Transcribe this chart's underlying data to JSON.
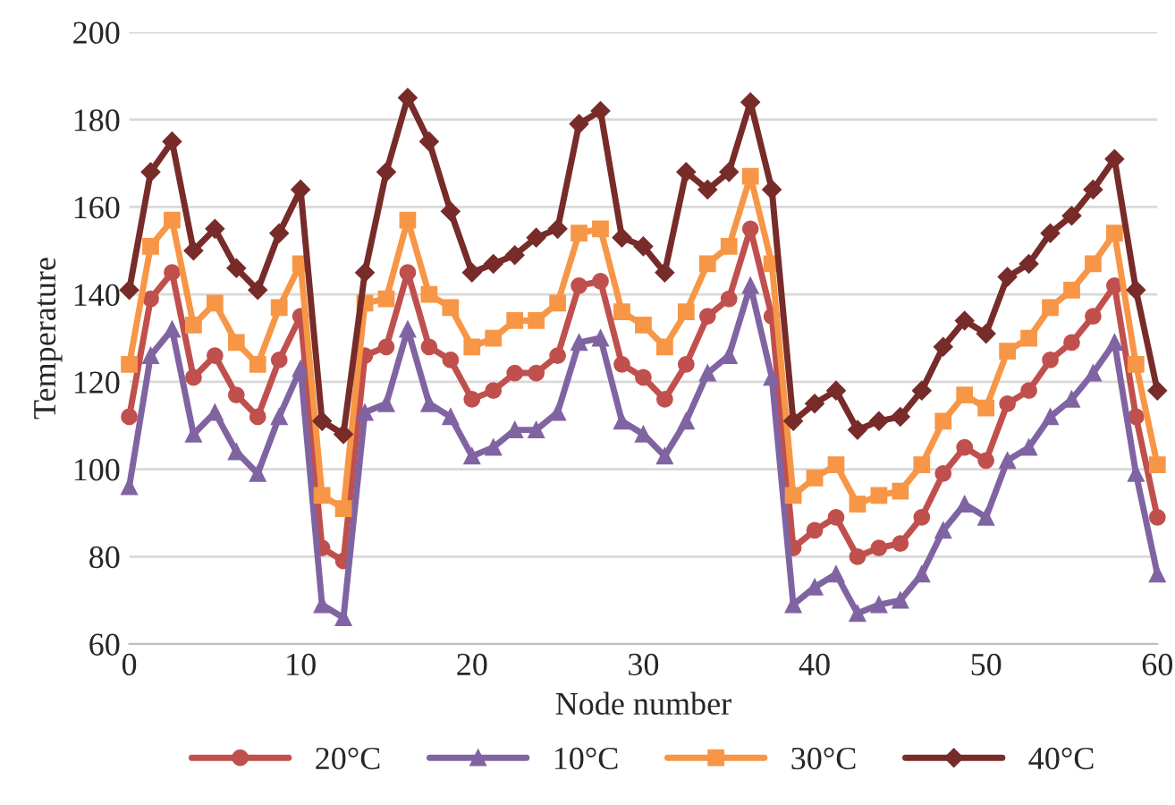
{
  "chart_data": {
    "type": "line",
    "xlabel": "Node number",
    "ylabel": "Temperature",
    "x": [
      0,
      1.25,
      2.5,
      3.75,
      5,
      6.25,
      7.5,
      8.75,
      10,
      11.25,
      12.5,
      13.75,
      15,
      16.25,
      17.5,
      18.75,
      20,
      21.25,
      22.5,
      23.75,
      25,
      26.25,
      27.5,
      28.75,
      30,
      31.25,
      32.5,
      33.75,
      35,
      36.25,
      37.5,
      38.75,
      40,
      41.25,
      42.5,
      43.75,
      45,
      46.25,
      47.5,
      48.75,
      50,
      51.25,
      52.5,
      53.75,
      55,
      56.25,
      57.5,
      58.75,
      60
    ],
    "series": [
      {
        "name": "20°C",
        "color": "#c0504d",
        "marker": "circle",
        "values": [
          112,
          139,
          145,
          121,
          126,
          117,
          112,
          125,
          135,
          82,
          79,
          126,
          128,
          145,
          128,
          125,
          116,
          118,
          122,
          122,
          126,
          142,
          143,
          124,
          121,
          116,
          124,
          135,
          139,
          155,
          135,
          82,
          86,
          89,
          80,
          82,
          83,
          89,
          99,
          105,
          102,
          115,
          118,
          125,
          129,
          135,
          142,
          112,
          89
        ]
      },
      {
        "name": "10°C",
        "color": "#8064a2",
        "marker": "triangle",
        "values": [
          96,
          126,
          132,
          108,
          113,
          104,
          99,
          112,
          123,
          69,
          66,
          113,
          115,
          132,
          115,
          112,
          103,
          105,
          109,
          109,
          113,
          129,
          130,
          111,
          108,
          103,
          111,
          122,
          126,
          142,
          121,
          69,
          73,
          76,
          67,
          69,
          70,
          76,
          86,
          92,
          89,
          102,
          105,
          112,
          116,
          122,
          129,
          99,
          76
        ]
      },
      {
        "name": "30°C",
        "color": "#f79646",
        "marker": "square",
        "values": [
          124,
          151,
          157,
          133,
          138,
          129,
          124,
          137,
          147,
          94,
          91,
          138,
          139,
          157,
          140,
          137,
          128,
          130,
          134,
          134,
          138,
          154,
          155,
          136,
          133,
          128,
          136,
          147,
          151,
          167,
          147,
          94,
          98,
          101,
          92,
          94,
          95,
          101,
          111,
          117,
          114,
          127,
          130,
          137,
          141,
          147,
          154,
          124,
          101
        ]
      },
      {
        "name": "40°C",
        "color": "#772c2a",
        "marker": "diamond",
        "values": [
          141,
          168,
          175,
          150,
          155,
          146,
          141,
          154,
          164,
          111,
          108,
          145,
          168,
          185,
          175,
          159,
          145,
          147,
          149,
          153,
          155,
          179,
          182,
          153,
          151,
          145,
          168,
          164,
          168,
          184,
          164,
          111,
          115,
          118,
          109,
          111,
          112,
          118,
          128,
          134,
          131,
          144,
          147,
          154,
          158,
          164,
          171,
          141,
          118
        ]
      }
    ],
    "xlim": [
      0,
      60
    ],
    "xticks": [
      0,
      10,
      20,
      30,
      40,
      50,
      60
    ],
    "ylim": [
      60,
      200
    ],
    "yticks": [
      60,
      80,
      100,
      120,
      140,
      160,
      180,
      200
    ],
    "grid": "y",
    "legend": "bottom",
    "line_style": "solid"
  }
}
